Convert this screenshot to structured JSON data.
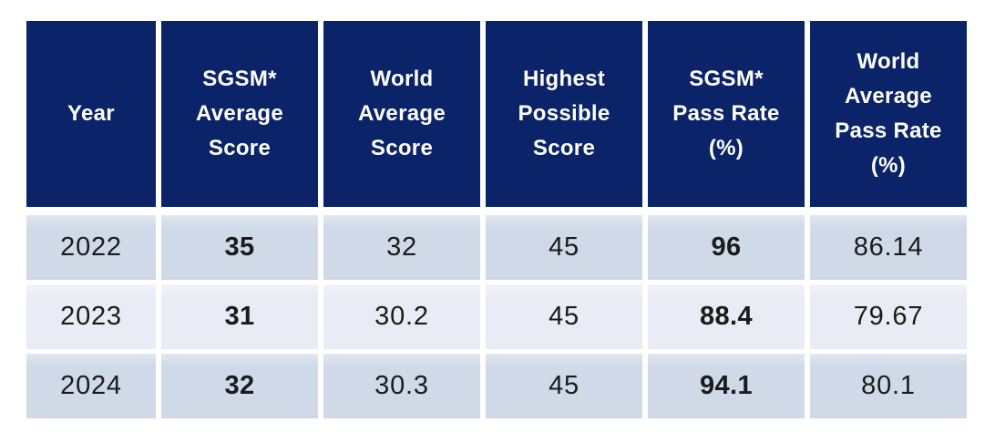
{
  "colors": {
    "header_bg": "#0B2368",
    "header_text": "#FFFFFF",
    "row_bg": "#CFD9E8",
    "row_alt_bg": "#E9ECF4",
    "body_text": "#1B1B1B",
    "page_bg": "#FFFFFF"
  },
  "table": {
    "columns": [
      {
        "id": "year",
        "label": "Year",
        "bold_values": false
      },
      {
        "id": "sgsm-average-score",
        "label": "SGSM*\nAverage\nScore",
        "bold_values": true
      },
      {
        "id": "world-average-score",
        "label": "World\nAverage\nScore",
        "bold_values": false
      },
      {
        "id": "highest-possible-score",
        "label": "Highest\nPossible\nScore",
        "bold_values": false
      },
      {
        "id": "sgsm-pass-rate",
        "label": "SGSM*\nPass Rate\n(%)",
        "bold_values": true
      },
      {
        "id": "world-average-pass-rate",
        "label": "World\nAverage\nPass Rate\n(%)",
        "bold_values": false
      }
    ],
    "rows": [
      {
        "cells": [
          "2022",
          "35",
          "32",
          "45",
          "96",
          "86.14"
        ]
      },
      {
        "cells": [
          "2023",
          "31",
          "30.2",
          "45",
          "88.4",
          "79.67"
        ]
      },
      {
        "cells": [
          "2024",
          "32",
          "30.3",
          "45",
          "94.1",
          "80.1"
        ]
      }
    ]
  },
  "chart_data": {
    "type": "table",
    "title": "",
    "columns": [
      "Year",
      "SGSM* Average Score",
      "World Average Score",
      "Highest Possible Score",
      "SGSM* Pass Rate (%)",
      "World Average Pass Rate (%)"
    ],
    "rows": [
      [
        "2022",
        35,
        32,
        45,
        96,
        86.14
      ],
      [
        "2023",
        31,
        30.2,
        45,
        88.4,
        79.67
      ],
      [
        "2024",
        32,
        30.3,
        45,
        94.1,
        80.1
      ]
    ],
    "emphasized_columns": [
      "SGSM* Average Score",
      "SGSM* Pass Rate (%)"
    ]
  }
}
